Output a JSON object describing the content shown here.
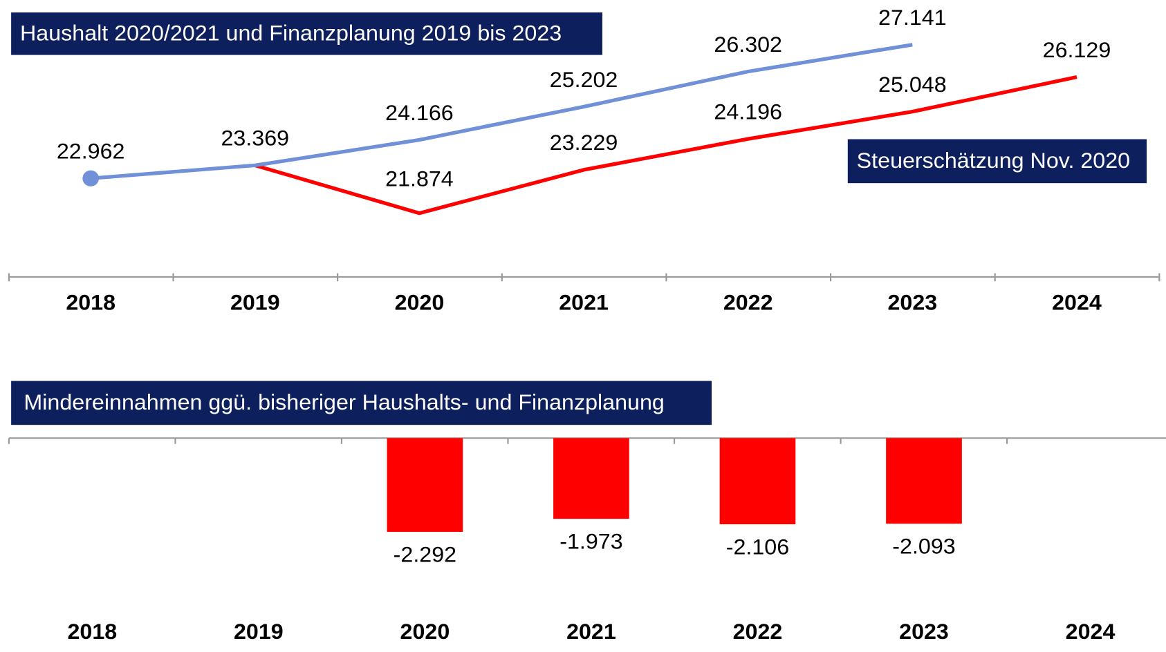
{
  "chart_data": [
    {
      "type": "line",
      "categories": [
        "2018",
        "2019",
        "2020",
        "2021",
        "2022",
        "2023",
        "2024"
      ],
      "series": [
        {
          "name": "Haushalt 2020/2021 und Finanzplanung 2019 bis 2023",
          "color": "#7090d8",
          "values": [
            22.962,
            23.369,
            24.166,
            25.202,
            26.302,
            27.141,
            null
          ]
        },
        {
          "name": "Steuerschätzung Nov. 2020",
          "color": "#ff0000",
          "values": [
            null,
            23.369,
            21.874,
            23.229,
            24.196,
            25.048,
            26.129
          ]
        }
      ]
    },
    {
      "type": "bar",
      "title": "Mindereinnahmen ggü. bisheriger Haushalts- und Finanzplanung",
      "categories": [
        "2018",
        "2019",
        "2020",
        "2021",
        "2022",
        "2023",
        "2024"
      ],
      "values": [
        null,
        null,
        -2.292,
        -1.973,
        -2.106,
        -2.093,
        null
      ],
      "color": "#ff0000"
    }
  ]
}
